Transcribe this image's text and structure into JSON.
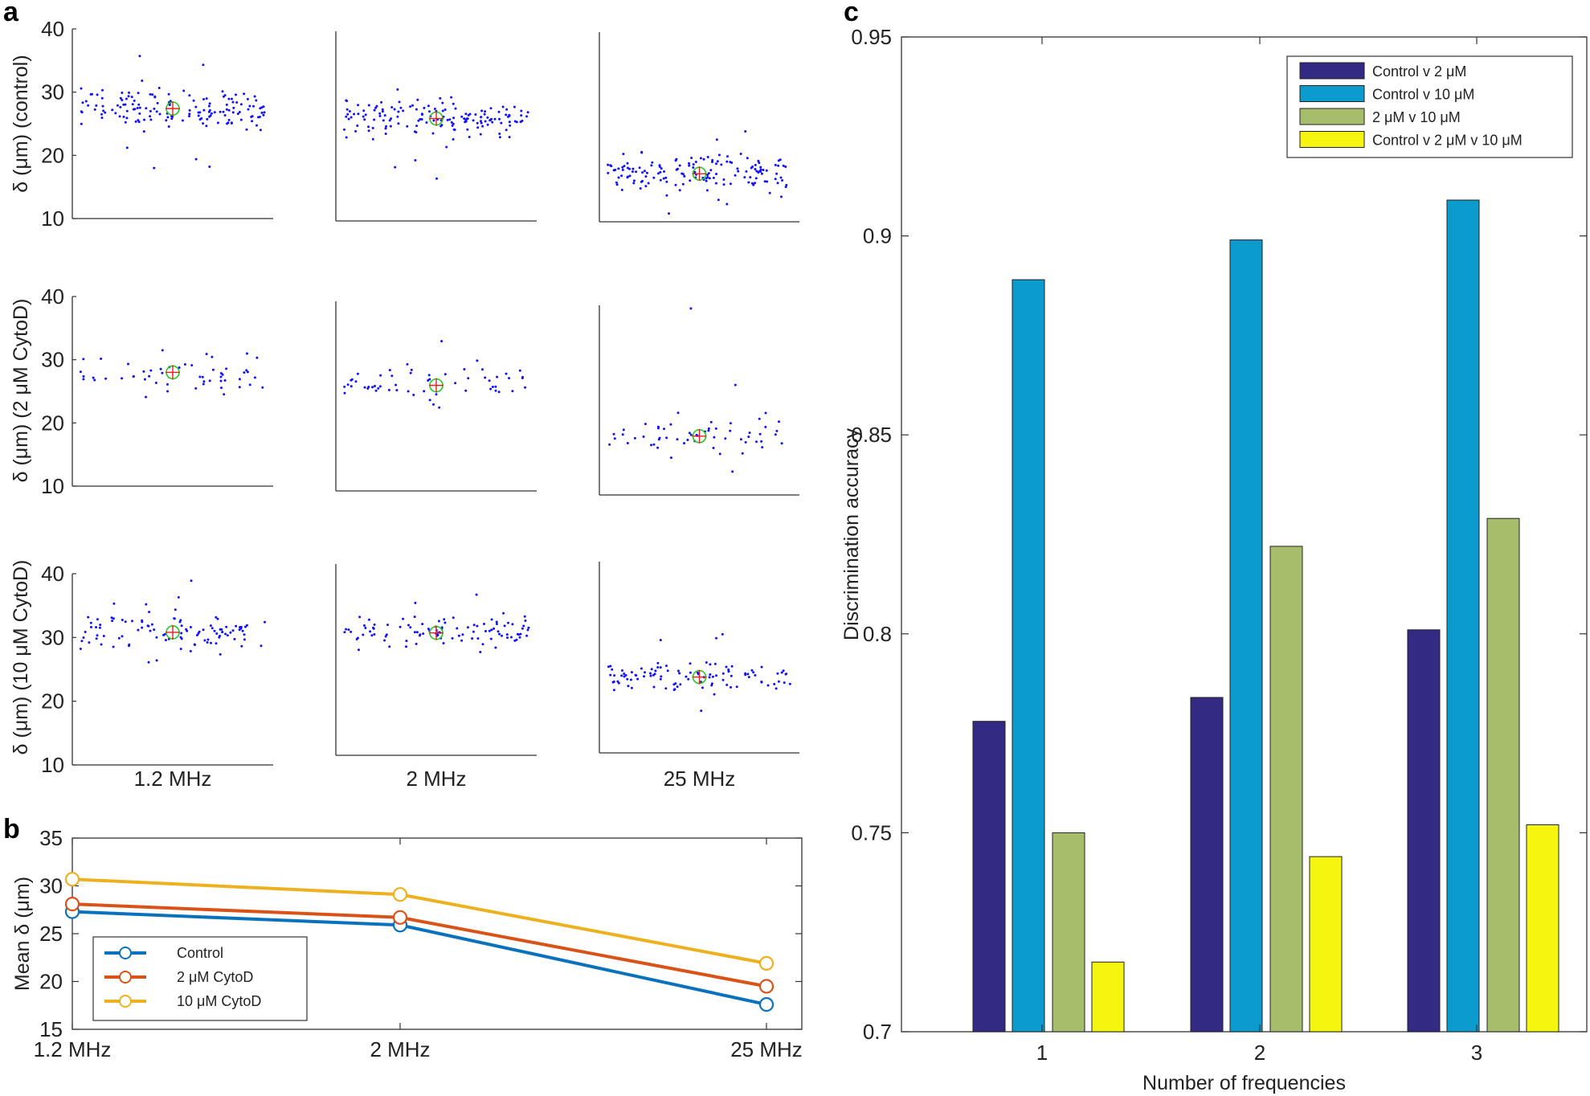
{
  "panel_labels": {
    "a": "a",
    "b": "b",
    "c": "c"
  },
  "colors": {
    "dots": "#1010ff",
    "mean_circle": "#22cc22",
    "mean_cross": "#e02020",
    "control": "#0a72bd",
    "cyto2": "#d95319",
    "cyto10": "#edb120",
    "bar1": "#322a83",
    "bar2": "#0b9bcd",
    "bar3": "#a6be6c",
    "bar4": "#f5f50f"
  },
  "chart_data": [
    {
      "id": "a",
      "type": "scatter",
      "title": "",
      "ylim": [
        10,
        40
      ],
      "yticks": [
        "10",
        "20",
        "30",
        "40"
      ],
      "row_labels": [
        "δ (μm) (control)",
        "δ (μm) (2 μM CytoD)",
        "δ (μm) (10 μM CytoD)"
      ],
      "col_labels": [
        "1.2 MHz",
        "2 MHz",
        "25 MHz"
      ],
      "means": [
        [
          27.4,
          26.2,
          17.6
        ],
        [
          28.0,
          26.7,
          19.3
        ],
        [
          30.8,
          29.2,
          21.9
        ]
      ],
      "spread": [
        [
          2.0,
          1.9,
          1.9
        ],
        [
          2.2,
          2.1,
          2.0
        ],
        [
          1.9,
          1.7,
          1.7
        ]
      ],
      "counts": [
        [
          150,
          150,
          150
        ],
        [
          50,
          55,
          55
        ],
        [
          100,
          100,
          100
        ]
      ],
      "outliers": [
        [
          [
            35.7,
            34.3,
            31.8,
            21.2,
            19.4,
            18.0,
            18.2
          ],
          [
            18.5,
            16.7,
            19.6,
            21.7,
            30.8
          ],
          [
            24.3,
            11.3,
            12.8,
            23.0
          ]
        ],
        [
          [
            31.5,
            30.9,
            24.1,
            25.0
          ],
          [
            33.7,
            30.6,
            23.2
          ],
          [
            39.5,
            27.4,
            13.7,
            23.0
          ]
        ],
        [
          [
            38.9,
            36.3,
            35.2,
            26.4,
            26.1
          ],
          [
            35.2,
            33.9,
            26.2
          ],
          [
            28.6,
            28.0,
            16.6,
            27.7
          ]
        ]
      ]
    },
    {
      "id": "b",
      "type": "line",
      "categories": [
        "1.2 MHz",
        "2 MHz",
        "25 MHz"
      ],
      "ylabel": "Mean δ (μm)",
      "ylim": [
        15,
        35
      ],
      "yticks": [
        "15",
        "20",
        "25",
        "30",
        "35"
      ],
      "series": [
        {
          "name": "Control",
          "values": [
            27.3,
            25.9,
            17.6
          ]
        },
        {
          "name": "2 μM CytoD",
          "values": [
            28.1,
            26.7,
            19.5
          ]
        },
        {
          "name": "10 μM CytoD",
          "values": [
            30.7,
            29.1,
            21.9
          ]
        }
      ],
      "legend_position": "bottom-left"
    },
    {
      "id": "c",
      "type": "bar",
      "categories": [
        "1",
        "2",
        "3"
      ],
      "xlabel": "Number of frequencies",
      "ylabel": "Discrimination accuracy",
      "ylim": [
        0.7,
        0.95
      ],
      "yticks": [
        "0.7",
        "0.75",
        "0.8",
        "0.85",
        "0.9",
        "0.95"
      ],
      "series": [
        {
          "name": "Control v 2 μM",
          "values": [
            0.778,
            0.784,
            0.801
          ]
        },
        {
          "name": "Control v 10 μM",
          "values": [
            0.889,
            0.899,
            0.909
          ]
        },
        {
          "name": "2 μM v 10 μM",
          "values": [
            0.75,
            0.822,
            0.829
          ]
        },
        {
          "name": "Control v 2 μM v 10 μM",
          "values": [
            0.7175,
            0.744,
            0.752
          ]
        }
      ],
      "legend_position": "top-right"
    }
  ]
}
